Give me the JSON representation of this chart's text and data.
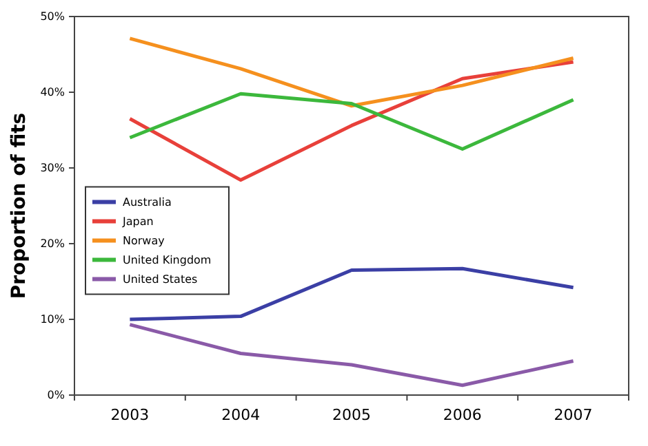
{
  "chart_data": {
    "type": "line",
    "ylabel": "Proportion of fits",
    "categories": [
      "2003",
      "2004",
      "2005",
      "2006",
      "2007"
    ],
    "series": [
      {
        "name": "Australia",
        "color": "#3b3fa5",
        "values": [
          10.0,
          10.4,
          16.5,
          16.7,
          14.2
        ]
      },
      {
        "name": "Japan",
        "color": "#e8403a",
        "values": [
          36.5,
          28.4,
          35.6,
          41.8,
          44.0
        ]
      },
      {
        "name": "Norway",
        "color": "#f5901e",
        "values": [
          47.1,
          43.1,
          38.2,
          40.9,
          44.5
        ]
      },
      {
        "name": "United Kingdom",
        "color": "#3cb83c",
        "values": [
          34.0,
          39.8,
          38.5,
          32.5,
          39.0
        ]
      },
      {
        "name": "United States",
        "color": "#8a5aa8",
        "values": [
          9.3,
          5.5,
          4.0,
          1.3,
          4.5
        ]
      }
    ],
    "ylim": [
      0,
      50
    ],
    "yticks": [
      {
        "value": 0,
        "label": "0%"
      },
      {
        "value": 10,
        "label": "10%"
      },
      {
        "value": 20,
        "label": "20%"
      },
      {
        "value": 30,
        "label": "30%"
      },
      {
        "value": 40,
        "label": "40%"
      },
      {
        "value": 50,
        "label": "50%"
      }
    ],
    "grid": false,
    "legend": "left",
    "marker": "none",
    "line_style": "solid"
  }
}
